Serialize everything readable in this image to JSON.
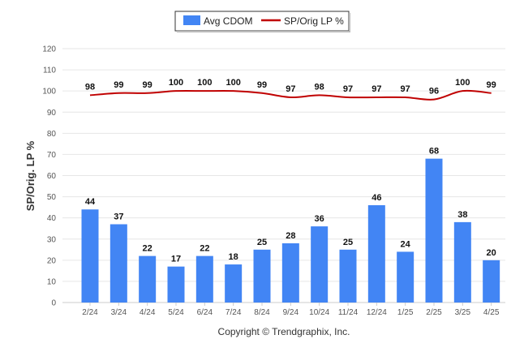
{
  "chart_data": {
    "type": "bar",
    "categories": [
      "2/24",
      "3/24",
      "4/24",
      "5/24",
      "6/24",
      "7/24",
      "8/24",
      "9/24",
      "10/24",
      "11/24",
      "12/24",
      "1/25",
      "2/25",
      "3/25",
      "4/25"
    ],
    "series": [
      {
        "name": "Avg CDOM",
        "type": "bar",
        "color": "#4285f4",
        "values": [
          44,
          37,
          22,
          17,
          22,
          18,
          25,
          28,
          36,
          25,
          46,
          24,
          68,
          38,
          20
        ]
      },
      {
        "name": "SP/Orig LP %",
        "type": "line",
        "color": "#c00000",
        "values": [
          98,
          99,
          99,
          100,
          100,
          100,
          99,
          97,
          98,
          97,
          97,
          97,
          96,
          100,
          99
        ]
      }
    ],
    "ylabel": "SP/Orig. LP %",
    "ylim": [
      0,
      120
    ],
    "yticks": [
      0,
      10,
      20,
      30,
      40,
      50,
      60,
      70,
      80,
      90,
      100,
      110,
      120
    ],
    "grid": true,
    "legend_position": "top-center"
  },
  "footer": {
    "copyright": "Copyright © Trendgraphix, Inc."
  }
}
